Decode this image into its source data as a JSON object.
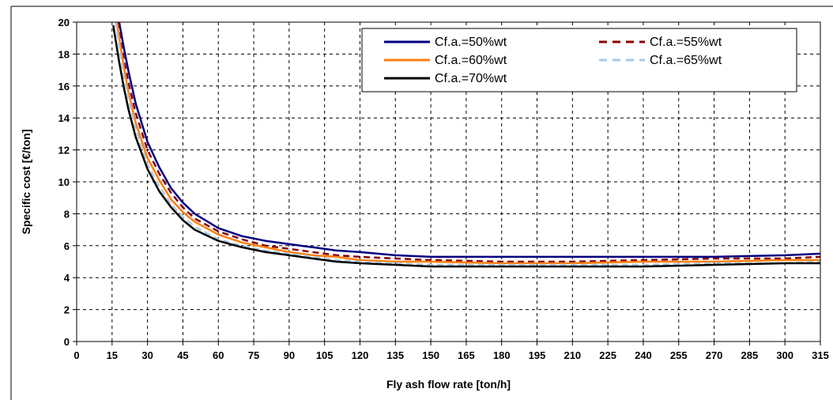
{
  "chart_data": {
    "type": "line",
    "title": "",
    "xlabel": "Fly ash flow rate [ton/h]",
    "ylabel": "Specific cost [€/ton]",
    "xlim": [
      0,
      315
    ],
    "ylim": [
      0,
      20
    ],
    "x_ticks": [
      0,
      15,
      30,
      45,
      60,
      75,
      90,
      105,
      120,
      135,
      150,
      165,
      180,
      195,
      210,
      225,
      240,
      255,
      270,
      285,
      300,
      315
    ],
    "y_ticks": [
      0,
      2,
      4,
      6,
      8,
      10,
      12,
      14,
      16,
      18,
      20
    ],
    "grid": true,
    "legend_position": "top-right",
    "series": [
      {
        "name": "Cf.a.=50%wt",
        "color": "#000080",
        "dash": "solid",
        "x": [
          18,
          20,
          22,
          25,
          30,
          35,
          40,
          45,
          50,
          60,
          70,
          80,
          90,
          100,
          110,
          120,
          135,
          150,
          180,
          210,
          240,
          270,
          300,
          315
        ],
        "y": [
          20,
          18.4,
          16.9,
          14.9,
          12.5,
          10.9,
          9.6,
          8.7,
          8.0,
          7.1,
          6.6,
          6.3,
          6.1,
          5.9,
          5.7,
          5.6,
          5.4,
          5.3,
          5.3,
          5.3,
          5.3,
          5.3,
          5.4,
          5.5
        ]
      },
      {
        "name": "Cf.a.=55%wt",
        "color": "#8b0000",
        "dash": "dashed",
        "x": [
          17.5,
          20,
          22,
          25,
          30,
          35,
          40,
          45,
          50,
          60,
          70,
          80,
          90,
          100,
          110,
          120,
          135,
          150,
          180,
          210,
          240,
          270,
          300,
          315
        ],
        "y": [
          20,
          17.7,
          16.2,
          14.3,
          12.0,
          10.5,
          9.3,
          8.4,
          7.7,
          6.9,
          6.4,
          6.0,
          5.8,
          5.6,
          5.4,
          5.3,
          5.2,
          5.1,
          5.0,
          5.0,
          5.1,
          5.2,
          5.2,
          5.3
        ]
      },
      {
        "name": "Cf.a.=60%wt",
        "color": "#ff7f0e",
        "dash": "solid",
        "x": [
          17,
          20,
          22,
          25,
          30,
          35,
          40,
          45,
          50,
          60,
          70,
          80,
          90,
          100,
          110,
          120,
          135,
          150,
          180,
          210,
          240,
          270,
          300,
          315
        ],
        "y": [
          20,
          17.2,
          15.6,
          13.7,
          11.5,
          10.1,
          8.9,
          8.1,
          7.5,
          6.7,
          6.2,
          5.9,
          5.6,
          5.4,
          5.3,
          5.1,
          5.0,
          5.0,
          4.9,
          4.9,
          5.0,
          5.0,
          5.1,
          5.1
        ]
      },
      {
        "name": "Cf.a.=65%wt",
        "color": "#a6cbe8",
        "dash": "dashed",
        "x": [
          16.5,
          20,
          22,
          25,
          30,
          35,
          40,
          45,
          50,
          60,
          70,
          80,
          90,
          100,
          110,
          120,
          135,
          150,
          180,
          210,
          240,
          270,
          300,
          315
        ],
        "y": [
          20,
          16.6,
          15.2,
          13.3,
          11.1,
          9.7,
          8.6,
          7.8,
          7.2,
          6.4,
          6.0,
          5.7,
          5.5,
          5.3,
          5.1,
          5.0,
          4.9,
          4.8,
          4.8,
          4.8,
          4.8,
          4.9,
          4.9,
          5.0
        ]
      },
      {
        "name": "Cf.a.=70%wt",
        "color": "#000000",
        "dash": "solid",
        "x": [
          15.5,
          18,
          20,
          22,
          25,
          30,
          35,
          40,
          45,
          50,
          60,
          70,
          80,
          90,
          100,
          110,
          120,
          135,
          150,
          180,
          210,
          240,
          270,
          300,
          315
        ],
        "y": [
          19.8,
          17.5,
          15.9,
          14.5,
          12.8,
          10.8,
          9.4,
          8.4,
          7.6,
          7.0,
          6.3,
          5.9,
          5.6,
          5.4,
          5.2,
          5.0,
          4.9,
          4.8,
          4.7,
          4.7,
          4.7,
          4.7,
          4.8,
          4.9,
          4.9
        ]
      }
    ]
  }
}
